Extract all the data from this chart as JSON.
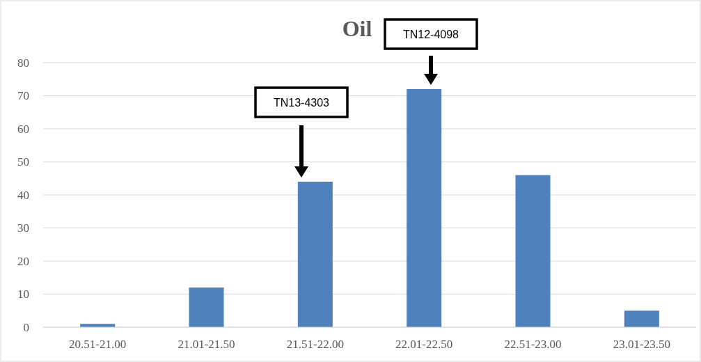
{
  "chart_data": {
    "type": "bar",
    "title": "Oil",
    "categories": [
      "20.51-21.00",
      "21.01-21.50",
      "21.51-22.00",
      "22.01-22.50",
      "22.51-23.00",
      "23.01-23.50"
    ],
    "values": [
      1,
      12,
      44,
      72,
      46,
      5
    ],
    "color": "#4f81bd",
    "ylim": [
      0,
      80
    ],
    "yticks": [
      0,
      10,
      20,
      30,
      40,
      50,
      60,
      70,
      80
    ],
    "grid": "y",
    "annotations": [
      "TN13-4303",
      "TN12-4098"
    ]
  }
}
